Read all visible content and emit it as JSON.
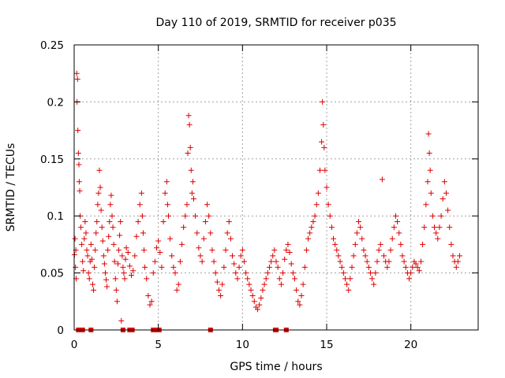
{
  "chart_data": {
    "type": "scatter",
    "title": "Day 110 of 2019, SRMTID for receiver p035",
    "xlabel": "GPS time / hours",
    "ylabel": "SRMTID / TECUs",
    "xlim": [
      0,
      24
    ],
    "ylim": [
      0,
      0.25
    ],
    "x_ticks": [
      0,
      5,
      10,
      15,
      20
    ],
    "x_tick_labels": [
      "0",
      "5",
      "10",
      "15",
      "20"
    ],
    "y_ticks": [
      0,
      0.05,
      0.1,
      0.15,
      0.2,
      0.25
    ],
    "y_tick_labels": [
      "0",
      "0.05",
      "0.1",
      "0.15",
      "0.2",
      "0.25"
    ],
    "grid": true,
    "legend": "none",
    "marker": "plus",
    "color": "#dd0000",
    "series": [
      {
        "name": "SRMTID",
        "points": [
          [
            0.02,
            0.066
          ],
          [
            0.05,
            0.08
          ],
          [
            0.08,
            0.055
          ],
          [
            0.1,
            0.07
          ],
          [
            0.12,
            0.045
          ],
          [
            0.15,
            0.225
          ],
          [
            0.17,
            0.2
          ],
          [
            0.2,
            0.22
          ],
          [
            0.22,
            0.175
          ],
          [
            0.25,
            0.155
          ],
          [
            0.28,
            0.145
          ],
          [
            0.3,
            0.13
          ],
          [
            0.33,
            0.122
          ],
          [
            0.36,
            0.1
          ],
          [
            0.4,
            0.09
          ],
          [
            0.45,
            0.075
          ],
          [
            0.5,
            0.06
          ],
          [
            0.55,
            0.052
          ],
          [
            0.6,
            0.08
          ],
          [
            0.65,
            0.095
          ],
          [
            0.7,
            0.085
          ],
          [
            0.75,
            0.07
          ],
          [
            0.8,
            0.065
          ],
          [
            0.85,
            0.05
          ],
          [
            0.9,
            0.045
          ],
          [
            0.95,
            0.06
          ],
          [
            1.0,
            0.075
          ],
          [
            1.05,
            0.062
          ],
          [
            1.1,
            0.04
          ],
          [
            1.15,
            0.035
          ],
          [
            1.2,
            0.055
          ],
          [
            1.25,
            0.07
          ],
          [
            1.3,
            0.085
          ],
          [
            1.35,
            0.095
          ],
          [
            1.4,
            0.11
          ],
          [
            1.45,
            0.12
          ],
          [
            1.5,
            0.14
          ],
          [
            1.55,
            0.125
          ],
          [
            1.6,
            0.105
          ],
          [
            1.65,
            0.09
          ],
          [
            1.7,
            0.078
          ],
          [
            1.75,
            0.065
          ],
          [
            1.8,
            0.058
          ],
          [
            1.85,
            0.05
          ],
          [
            1.9,
            0.044
          ],
          [
            1.95,
            0.038
          ],
          [
            2.0,
            0.07
          ],
          [
            2.05,
            0.082
          ],
          [
            2.1,
            0.095
          ],
          [
            2.15,
            0.11
          ],
          [
            2.2,
            0.118
          ],
          [
            2.25,
            0.1
          ],
          [
            2.3,
            0.09
          ],
          [
            2.35,
            0.075
          ],
          [
            2.4,
            0.06
          ],
          [
            2.45,
            0.045
          ],
          [
            2.5,
            0.035
          ],
          [
            2.55,
            0.025
          ],
          [
            2.6,
            0.058
          ],
          [
            2.65,
            0.07
          ],
          [
            2.7,
            0.083
          ],
          [
            2.75,
            0.095
          ],
          [
            2.8,
            0.008
          ],
          [
            2.85,
            0.065
          ],
          [
            2.9,
            0.055
          ],
          [
            2.95,
            0.05
          ],
          [
            3.0,
            0.045
          ],
          [
            3.05,
            0.062
          ],
          [
            3.1,
            0.072
          ],
          [
            3.2,
            0.068
          ],
          [
            3.3,
            0.056
          ],
          [
            3.4,
            0.048
          ],
          [
            3.5,
            0.052
          ],
          [
            3.6,
            0.065
          ],
          [
            3.7,
            0.082
          ],
          [
            3.8,
            0.095
          ],
          [
            3.9,
            0.11
          ],
          [
            4.0,
            0.12
          ],
          [
            4.05,
            0.1
          ],
          [
            4.1,
            0.085
          ],
          [
            4.15,
            0.07
          ],
          [
            4.2,
            0.055
          ],
          [
            4.3,
            0.045
          ],
          [
            4.4,
            0.03
          ],
          [
            4.5,
            0.022
          ],
          [
            4.6,
            0.025
          ],
          [
            4.7,
            0.05
          ],
          [
            4.8,
            0.06
          ],
          [
            4.9,
            0.072
          ],
          [
            5.0,
            0.078
          ],
          [
            5.1,
            0.068
          ],
          [
            5.2,
            0.055
          ],
          [
            5.3,
            0.095
          ],
          [
            5.4,
            0.12
          ],
          [
            5.5,
            0.13
          ],
          [
            5.55,
            0.11
          ],
          [
            5.6,
            0.1
          ],
          [
            5.7,
            0.08
          ],
          [
            5.8,
            0.065
          ],
          [
            5.9,
            0.055
          ],
          [
            6.0,
            0.05
          ],
          [
            6.1,
            0.035
          ],
          [
            6.2,
            0.04
          ],
          [
            6.3,
            0.06
          ],
          [
            6.4,
            0.075
          ],
          [
            6.5,
            0.09
          ],
          [
            6.6,
            0.1
          ],
          [
            6.7,
            0.11
          ],
          [
            6.75,
            0.155
          ],
          [
            6.8,
            0.188
          ],
          [
            6.85,
            0.18
          ],
          [
            6.9,
            0.16
          ],
          [
            6.95,
            0.14
          ],
          [
            7.0,
            0.12
          ],
          [
            7.05,
            0.13
          ],
          [
            7.1,
            0.115
          ],
          [
            7.2,
            0.1
          ],
          [
            7.3,
            0.085
          ],
          [
            7.4,
            0.072
          ],
          [
            7.5,
            0.065
          ],
          [
            7.6,
            0.06
          ],
          [
            7.7,
            0.08
          ],
          [
            7.8,
            0.095
          ],
          [
            7.9,
            0.11
          ],
          [
            8.0,
            0.1
          ],
          [
            8.1,
            0.085
          ],
          [
            8.2,
            0.07
          ],
          [
            8.3,
            0.06
          ],
          [
            8.4,
            0.05
          ],
          [
            8.5,
            0.042
          ],
          [
            8.6,
            0.035
          ],
          [
            8.7,
            0.03
          ],
          [
            8.8,
            0.04
          ],
          [
            8.9,
            0.055
          ],
          [
            9.0,
            0.07
          ],
          [
            9.1,
            0.085
          ],
          [
            9.2,
            0.095
          ],
          [
            9.3,
            0.08
          ],
          [
            9.4,
            0.065
          ],
          [
            9.5,
            0.058
          ],
          [
            9.6,
            0.05
          ],
          [
            9.7,
            0.045
          ],
          [
            9.8,
            0.055
          ],
          [
            9.9,
            0.065
          ],
          [
            10.0,
            0.07
          ],
          [
            10.1,
            0.06
          ],
          [
            10.2,
            0.05
          ],
          [
            10.3,
            0.045
          ],
          [
            10.4,
            0.04
          ],
          [
            10.5,
            0.035
          ],
          [
            10.6,
            0.03
          ],
          [
            10.7,
            0.025
          ],
          [
            10.8,
            0.02
          ],
          [
            10.9,
            0.018
          ],
          [
            11.0,
            0.022
          ],
          [
            11.1,
            0.028
          ],
          [
            11.2,
            0.035
          ],
          [
            11.3,
            0.04
          ],
          [
            11.4,
            0.045
          ],
          [
            11.5,
            0.05
          ],
          [
            11.6,
            0.055
          ],
          [
            11.7,
            0.06
          ],
          [
            11.8,
            0.065
          ],
          [
            11.9,
            0.07
          ],
          [
            12.0,
            0.06
          ],
          [
            12.1,
            0.055
          ],
          [
            12.2,
            0.045
          ],
          [
            12.3,
            0.04
          ],
          [
            12.4,
            0.05
          ],
          [
            12.5,
            0.062
          ],
          [
            12.6,
            0.07
          ],
          [
            12.7,
            0.075
          ],
          [
            12.8,
            0.068
          ],
          [
            12.9,
            0.058
          ],
          [
            13.0,
            0.05
          ],
          [
            13.1,
            0.045
          ],
          [
            13.2,
            0.035
          ],
          [
            13.3,
            0.025
          ],
          [
            13.4,
            0.022
          ],
          [
            13.5,
            0.03
          ],
          [
            13.6,
            0.04
          ],
          [
            13.7,
            0.055
          ],
          [
            13.8,
            0.07
          ],
          [
            13.9,
            0.08
          ],
          [
            14.0,
            0.085
          ],
          [
            14.1,
            0.09
          ],
          [
            14.2,
            0.095
          ],
          [
            14.3,
            0.1
          ],
          [
            14.4,
            0.11
          ],
          [
            14.5,
            0.12
          ],
          [
            14.6,
            0.14
          ],
          [
            14.7,
            0.165
          ],
          [
            14.75,
            0.2
          ],
          [
            14.8,
            0.18
          ],
          [
            14.85,
            0.16
          ],
          [
            14.9,
            0.14
          ],
          [
            15.0,
            0.125
          ],
          [
            15.1,
            0.11
          ],
          [
            15.2,
            0.1
          ],
          [
            15.3,
            0.09
          ],
          [
            15.4,
            0.08
          ],
          [
            15.5,
            0.075
          ],
          [
            15.6,
            0.07
          ],
          [
            15.7,
            0.065
          ],
          [
            15.8,
            0.06
          ],
          [
            15.9,
            0.055
          ],
          [
            16.0,
            0.05
          ],
          [
            16.1,
            0.045
          ],
          [
            16.2,
            0.04
          ],
          [
            16.3,
            0.035
          ],
          [
            16.4,
            0.045
          ],
          [
            16.5,
            0.055
          ],
          [
            16.6,
            0.065
          ],
          [
            16.7,
            0.075
          ],
          [
            16.8,
            0.085
          ],
          [
            16.9,
            0.095
          ],
          [
            17.0,
            0.09
          ],
          [
            17.1,
            0.08
          ],
          [
            17.2,
            0.07
          ],
          [
            17.3,
            0.065
          ],
          [
            17.4,
            0.06
          ],
          [
            17.5,
            0.055
          ],
          [
            17.6,
            0.05
          ],
          [
            17.7,
            0.045
          ],
          [
            17.8,
            0.04
          ],
          [
            17.9,
            0.05
          ],
          [
            18.0,
            0.06
          ],
          [
            18.1,
            0.07
          ],
          [
            18.2,
            0.075
          ],
          [
            18.3,
            0.132
          ],
          [
            18.4,
            0.065
          ],
          [
            18.5,
            0.06
          ],
          [
            18.6,
            0.055
          ],
          [
            18.7,
            0.06
          ],
          [
            18.8,
            0.07
          ],
          [
            18.9,
            0.08
          ],
          [
            19.0,
            0.09
          ],
          [
            19.1,
            0.1
          ],
          [
            19.2,
            0.095
          ],
          [
            19.3,
            0.085
          ],
          [
            19.4,
            0.075
          ],
          [
            19.5,
            0.065
          ],
          [
            19.6,
            0.06
          ],
          [
            19.7,
            0.055
          ],
          [
            19.8,
            0.05
          ],
          [
            19.9,
            0.045
          ],
          [
            20.0,
            0.05
          ],
          [
            20.1,
            0.055
          ],
          [
            20.2,
            0.06
          ],
          [
            20.3,
            0.058
          ],
          [
            20.4,
            0.055
          ],
          [
            20.5,
            0.052
          ],
          [
            20.6,
            0.06
          ],
          [
            20.7,
            0.075
          ],
          [
            20.8,
            0.09
          ],
          [
            20.9,
            0.11
          ],
          [
            21.0,
            0.13
          ],
          [
            21.05,
            0.172
          ],
          [
            21.1,
            0.155
          ],
          [
            21.15,
            0.14
          ],
          [
            21.2,
            0.12
          ],
          [
            21.3,
            0.1
          ],
          [
            21.4,
            0.09
          ],
          [
            21.5,
            0.085
          ],
          [
            21.6,
            0.08
          ],
          [
            21.7,
            0.09
          ],
          [
            21.8,
            0.1
          ],
          [
            21.9,
            0.115
          ],
          [
            22.0,
            0.13
          ],
          [
            22.1,
            0.12
          ],
          [
            22.2,
            0.105
          ],
          [
            22.3,
            0.09
          ],
          [
            22.4,
            0.075
          ],
          [
            22.5,
            0.065
          ],
          [
            22.6,
            0.06
          ],
          [
            22.7,
            0.055
          ],
          [
            22.8,
            0.06
          ],
          [
            22.9,
            0.065
          ]
        ]
      }
    ],
    "zero_markers_x": [
      0.25,
      0.5,
      1.0,
      2.9,
      3.3,
      3.4,
      3.45,
      4.7,
      4.95,
      5.05,
      8.1,
      11.95,
      12.0,
      12.6
    ]
  }
}
